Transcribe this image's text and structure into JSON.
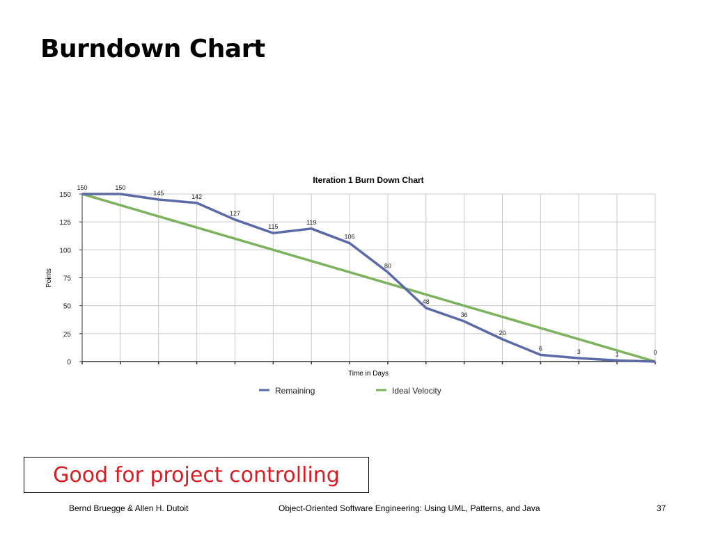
{
  "slide": {
    "title": "Burndown Chart",
    "callout": "Good for project controlling",
    "footer_left": "Bernd Bruegge & Allen H. Dutoit",
    "footer_center": "Object-Oriented Software Engineering: Using UML, Patterns, and Java",
    "page_number": "37"
  },
  "chart_data": {
    "type": "line",
    "title": "Iteration 1 Burn Down Chart",
    "xlabel": "Time in Days",
    "ylabel": "Points",
    "x": [
      0,
      1,
      2,
      3,
      4,
      5,
      6,
      7,
      8,
      9,
      10,
      11,
      12,
      13,
      14,
      15
    ],
    "ylim": [
      0,
      150
    ],
    "yticks": [
      0,
      25,
      50,
      75,
      100,
      125,
      150
    ],
    "grid": true,
    "legend": "bottom",
    "series": [
      {
        "name": "Remaining",
        "color": "#5b6aa6",
        "values": [
          150,
          150,
          145,
          142,
          127,
          115,
          119,
          106,
          80,
          48,
          36,
          20,
          6,
          3,
          1,
          0
        ],
        "labels": [
          "150",
          "150",
          "145",
          "142",
          "127",
          "115",
          "119",
          "106",
          "80",
          "48",
          "36",
          "20",
          "6",
          "3",
          "1",
          "0"
        ]
      },
      {
        "name": "Ideal Velocity",
        "color": "#7cb25e",
        "values": [
          150,
          140,
          130,
          120,
          110,
          100,
          90,
          80,
          70,
          60,
          50,
          40,
          30,
          20,
          10,
          0
        ]
      }
    ]
  }
}
